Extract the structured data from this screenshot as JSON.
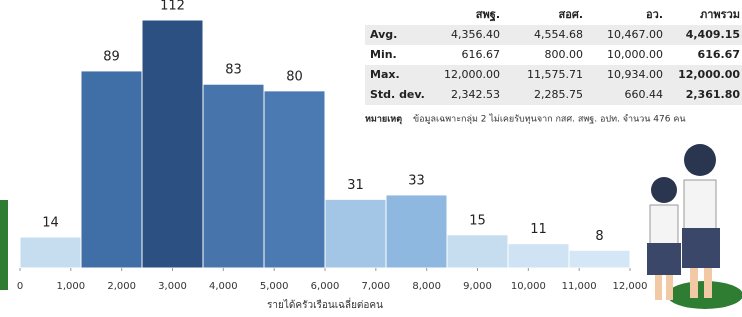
{
  "chart_data": {
    "type": "histogram",
    "bins": [
      0,
      1200,
      2400,
      3600,
      4800,
      6000,
      7200,
      8400,
      9600,
      10800,
      12000
    ],
    "values": [
      14,
      89,
      112,
      83,
      80,
      31,
      33,
      15,
      11,
      8
    ],
    "colors": [
      "#c6ddf0",
      "#3f6fa6",
      "#2c5082",
      "#4774ab",
      "#4b79b1",
      "#a3c6e7",
      "#8fb8e0",
      "#c6ddf0",
      "#cfe3f4",
      "#d5e7f6"
    ],
    "xlim": [
      0,
      12000
    ],
    "xticks": [
      0,
      {
        "value": 1000,
        "label": "1,000"
      },
      {
        "value": 2000,
        "label": "2,000"
      },
      {
        "value": 3000,
        "label": "3,000"
      },
      {
        "value": 4000,
        "label": "4,000"
      },
      {
        "value": 5000,
        "label": "5,000"
      },
      {
        "value": 6000,
        "label": "6,000"
      },
      {
        "value": 7000,
        "label": "7,000"
      },
      {
        "value": 8000,
        "label": "8,000"
      },
      {
        "value": 9000,
        "label": "9,000"
      },
      {
        "value": 10000,
        "label": "10,000"
      },
      {
        "value": 11000,
        "label": "11,000"
      },
      {
        "value": 12000,
        "label": "12,000"
      }
    ],
    "x_label": "รายได้ครัวเรือนเฉลี่ยต่อคน"
  },
  "table": {
    "header": [
      "สพฐ.",
      "สอศ.",
      "อว.",
      "ภาพรวม"
    ],
    "rows": [
      [
        "Avg.",
        "4,356.40",
        "4,554.68",
        "10,467.00",
        "4,409.15"
      ],
      [
        "Min.",
        "616.67",
        "800.00",
        "10,000.00",
        "616.67"
      ],
      [
        "Max.",
        "12,000.00",
        "11,575.71",
        "10,934.00",
        "12,000.00"
      ],
      [
        "Std. dev.",
        "2,342.53",
        "2,285.75",
        "660.44",
        "2,361.80"
      ]
    ],
    "note_label": "หมายเหตุ",
    "note": "ข้อมูลเฉพาะกลุ่ม 2 ไม่เคยรับทุนจาก กสศ. สพฐ. อปท. จำนวน 476 คน"
  }
}
